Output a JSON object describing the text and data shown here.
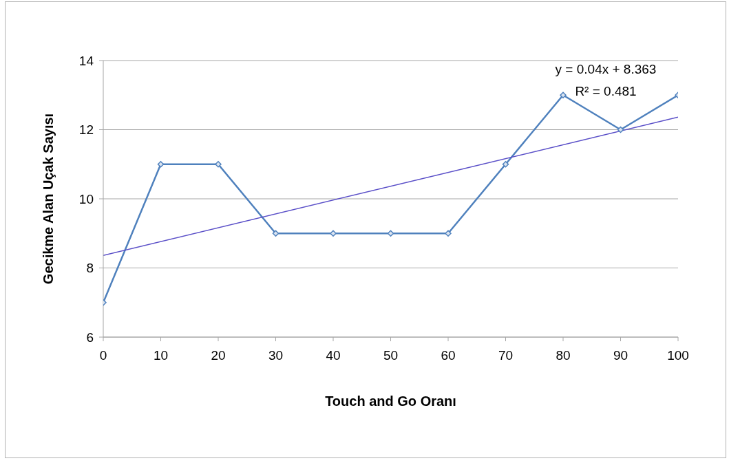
{
  "chart_data": {
    "type": "line",
    "xlabel": "Touch and Go Oranı",
    "ylabel": "Gecikme Alan Uçak Sayısı",
    "x": [
      0,
      10,
      20,
      30,
      40,
      50,
      60,
      70,
      80,
      90,
      100
    ],
    "series": [
      {
        "color": "#4f81bd",
        "values": [
          7,
          11,
          11,
          9,
          9,
          9,
          9,
          11,
          13,
          12,
          13
        ],
        "marker": "diamond"
      },
      {
        "type": "line",
        "x": [
          0,
          100
        ],
        "color": "#5a4fc8",
        "values": [
          8.363,
          12.363
        ],
        "marker": "none"
      }
    ],
    "xlim": [
      0,
      100
    ],
    "xticks": [
      0,
      10,
      20,
      30,
      40,
      50,
      60,
      70,
      80,
      90,
      100
    ],
    "ylim": [
      6,
      14
    ],
    "yticks": [
      6,
      8,
      10,
      12,
      14
    ],
    "grid": "y",
    "annotations": [
      "y = 0.04x + 8.363",
      "R² = 0.481"
    ]
  }
}
